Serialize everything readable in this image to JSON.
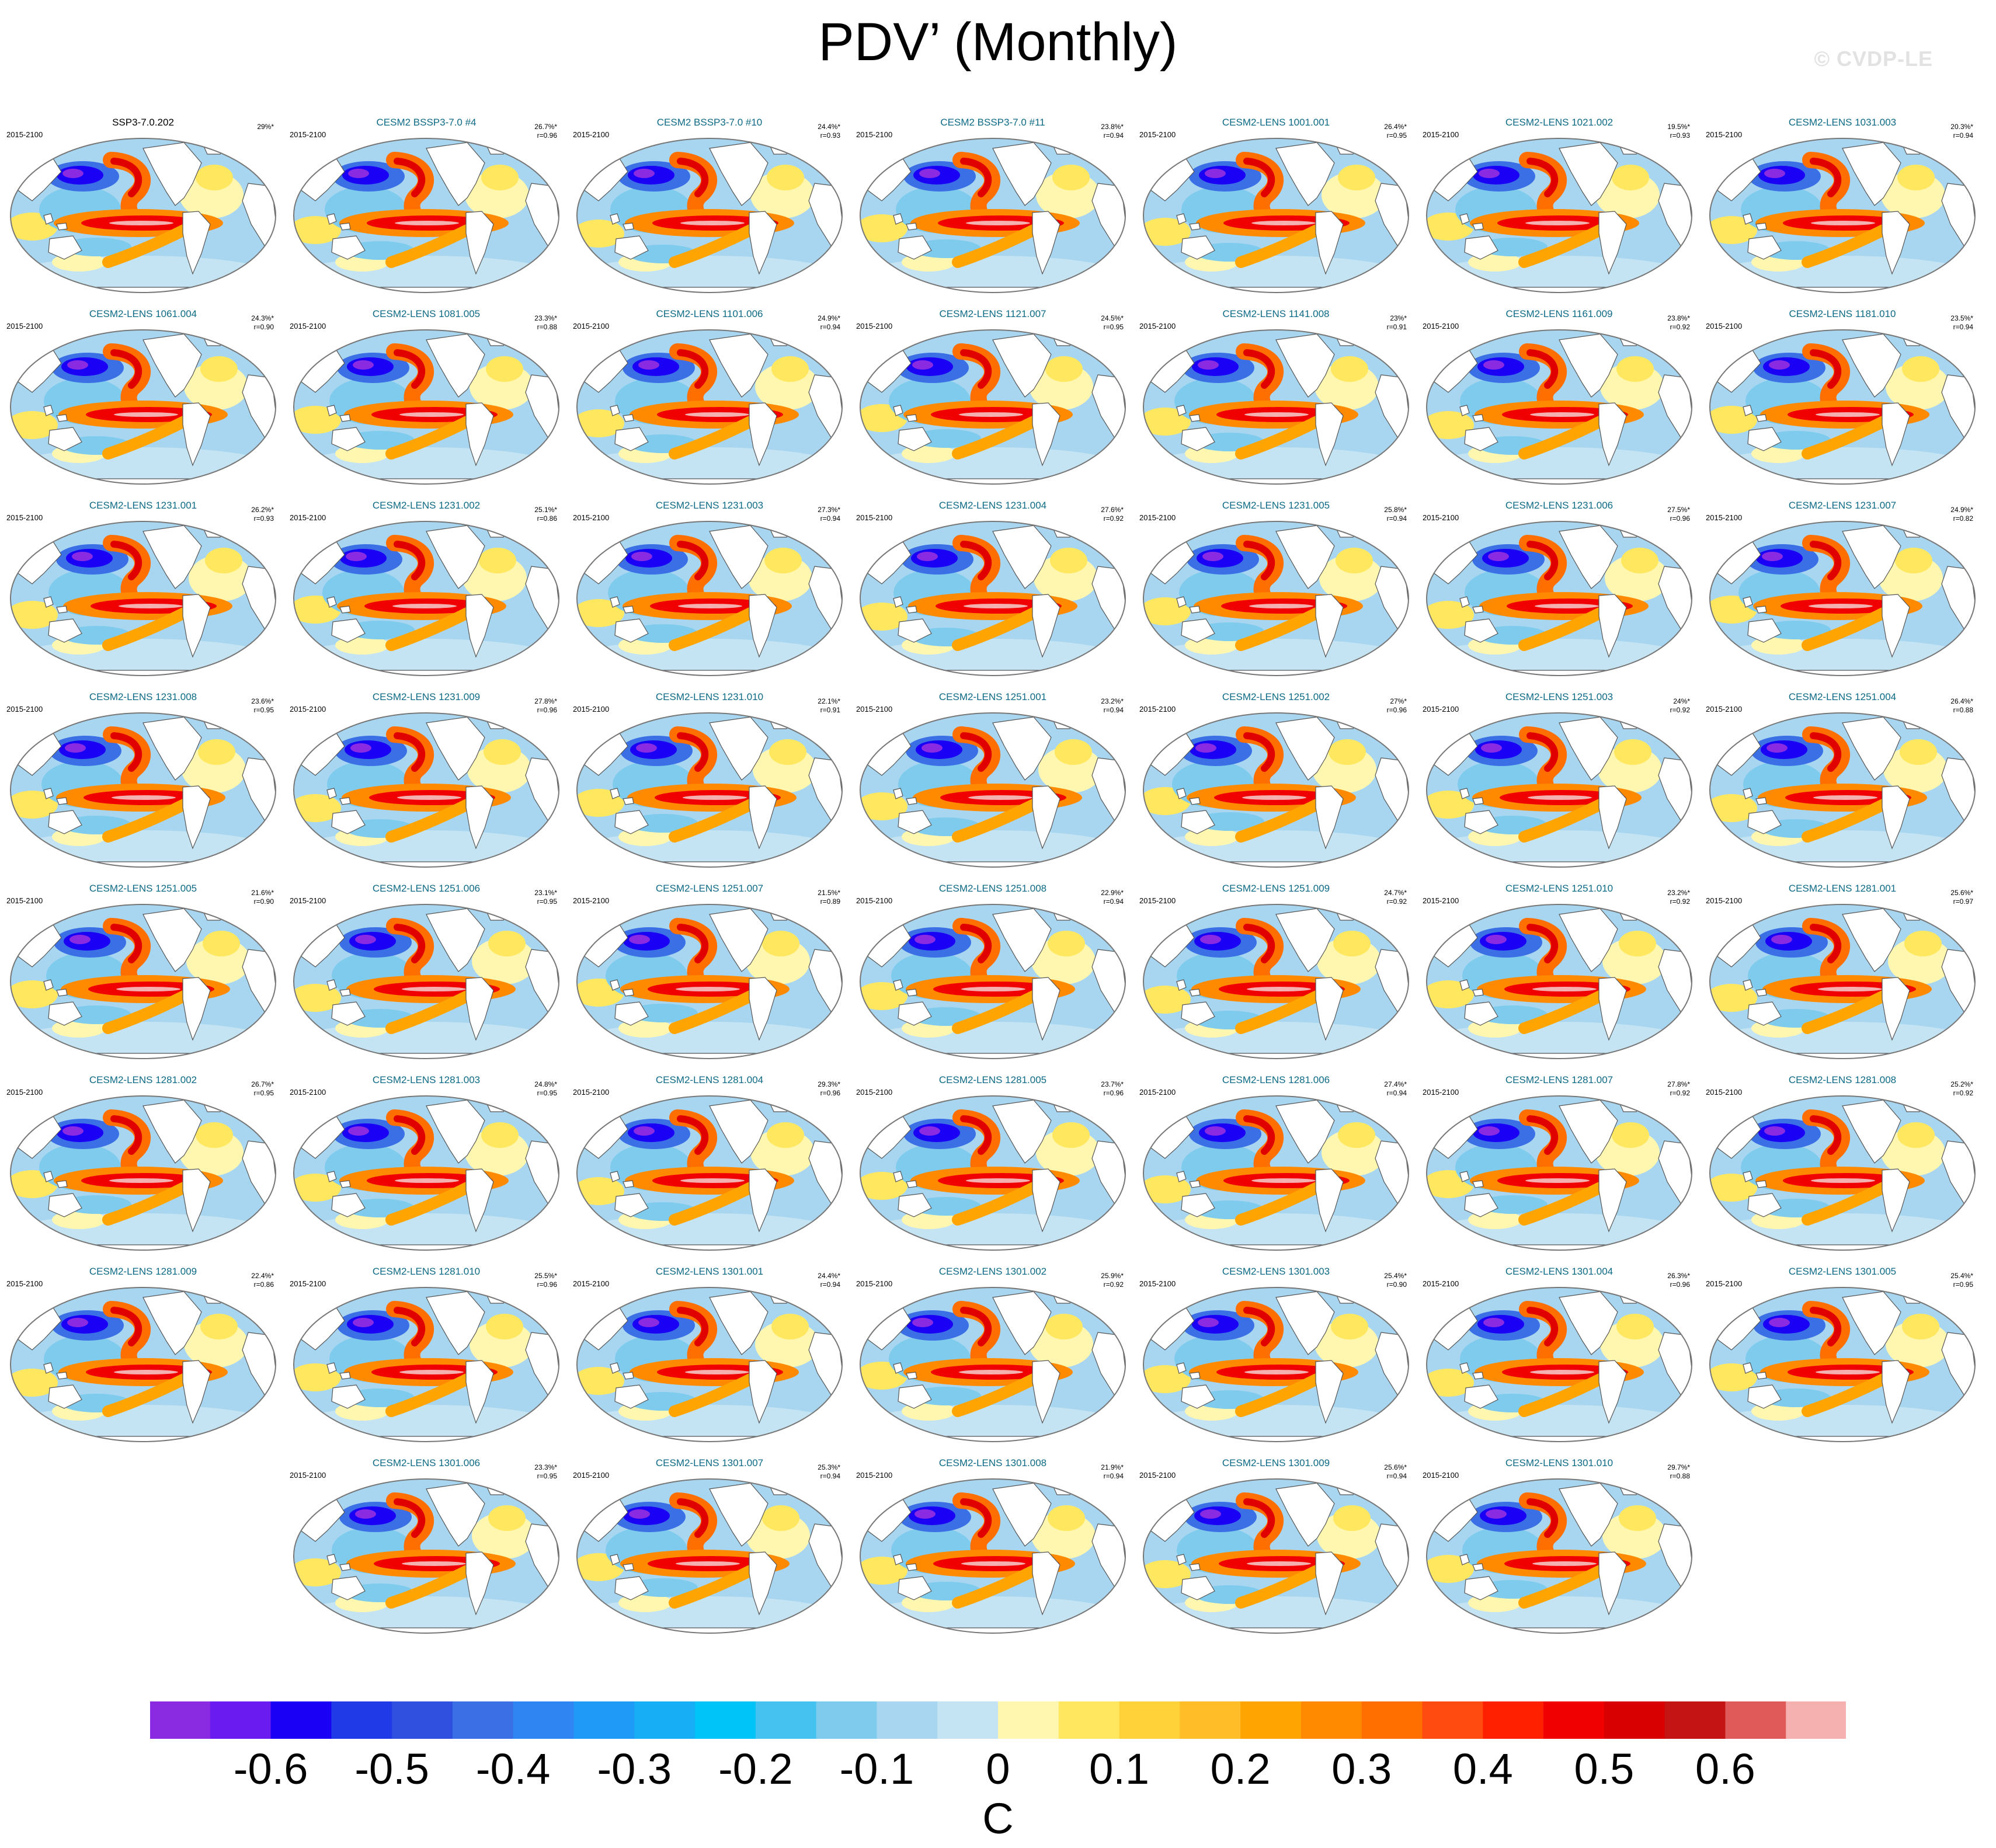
{
  "title": "PDV’ (Monthly)",
  "watermark": "© CVDP-LE",
  "period_label": "2015-2100",
  "panels": [
    {
      "title": "SSP3-7.0.202",
      "pct": "29%*",
      "r": ""
    },
    {
      "title": "CESM2 BSSP3-7.0 #4",
      "pct": "26.7%*",
      "r": "r=0.96"
    },
    {
      "title": "CESM2 BSSP3-7.0 #10",
      "pct": "24.4%*",
      "r": "r=0.93"
    },
    {
      "title": "CESM2 BSSP3-7.0 #11",
      "pct": "23.8%*",
      "r": "r=0.94"
    },
    {
      "title": "CESM2-LENS 1001.001",
      "pct": "26.4%*",
      "r": "r=0.95"
    },
    {
      "title": "CESM2-LENS 1021.002",
      "pct": "19.5%*",
      "r": "r=0.93"
    },
    {
      "title": "CESM2-LENS 1031.003",
      "pct": "20.3%*",
      "r": "r=0.94"
    },
    {
      "title": "CESM2-LENS 1061.004",
      "pct": "24.3%*",
      "r": "r=0.90"
    },
    {
      "title": "CESM2-LENS 1081.005",
      "pct": "23.3%*",
      "r": "r=0.88"
    },
    {
      "title": "CESM2-LENS 1101.006",
      "pct": "24.9%*",
      "r": "r=0.94"
    },
    {
      "title": "CESM2-LENS 1121.007",
      "pct": "24.5%*",
      "r": "r=0.95"
    },
    {
      "title": "CESM2-LENS 1141.008",
      "pct": "23%*",
      "r": "r=0.91"
    },
    {
      "title": "CESM2-LENS 1161.009",
      "pct": "23.8%*",
      "r": "r=0.92"
    },
    {
      "title": "CESM2-LENS 1181.010",
      "pct": "23.5%*",
      "r": "r=0.94"
    },
    {
      "title": "CESM2-LENS 1231.001",
      "pct": "26.2%*",
      "r": "r=0.93"
    },
    {
      "title": "CESM2-LENS 1231.002",
      "pct": "25.1%*",
      "r": "r=0.86"
    },
    {
      "title": "CESM2-LENS 1231.003",
      "pct": "27.3%*",
      "r": "r=0.94"
    },
    {
      "title": "CESM2-LENS 1231.004",
      "pct": "27.6%*",
      "r": "r=0.92"
    },
    {
      "title": "CESM2-LENS 1231.005",
      "pct": "25.8%*",
      "r": "r=0.94"
    },
    {
      "title": "CESM2-LENS 1231.006",
      "pct": "27.5%*",
      "r": "r=0.96"
    },
    {
      "title": "CESM2-LENS 1231.007",
      "pct": "24.9%*",
      "r": "r=0.82"
    },
    {
      "title": "CESM2-LENS 1231.008",
      "pct": "23.6%*",
      "r": "r=0.95"
    },
    {
      "title": "CESM2-LENS 1231.009",
      "pct": "27.8%*",
      "r": "r=0.96"
    },
    {
      "title": "CESM2-LENS 1231.010",
      "pct": "22.1%*",
      "r": "r=0.91"
    },
    {
      "title": "CESM2-LENS 1251.001",
      "pct": "23.2%*",
      "r": "r=0.94"
    },
    {
      "title": "CESM2-LENS 1251.002",
      "pct": "27%*",
      "r": "r=0.96"
    },
    {
      "title": "CESM2-LENS 1251.003",
      "pct": "24%*",
      "r": "r=0.92"
    },
    {
      "title": "CESM2-LENS 1251.004",
      "pct": "26.4%*",
      "r": "r=0.88"
    },
    {
      "title": "CESM2-LENS 1251.005",
      "pct": "21.6%*",
      "r": "r=0.90"
    },
    {
      "title": "CESM2-LENS 1251.006",
      "pct": "23.1%*",
      "r": "r=0.95"
    },
    {
      "title": "CESM2-LENS 1251.007",
      "pct": "21.5%*",
      "r": "r=0.89"
    },
    {
      "title": "CESM2-LENS 1251.008",
      "pct": "22.9%*",
      "r": "r=0.94"
    },
    {
      "title": "CESM2-LENS 1251.009",
      "pct": "24.7%*",
      "r": "r=0.92"
    },
    {
      "title": "CESM2-LENS 1251.010",
      "pct": "23.2%*",
      "r": "r=0.92"
    },
    {
      "title": "CESM2-LENS 1281.001",
      "pct": "25.6%*",
      "r": "r=0.97"
    },
    {
      "title": "CESM2-LENS 1281.002",
      "pct": "26.7%*",
      "r": "r=0.95"
    },
    {
      "title": "CESM2-LENS 1281.003",
      "pct": "24.8%*",
      "r": "r=0.95"
    },
    {
      "title": "CESM2-LENS 1281.004",
      "pct": "29.3%*",
      "r": "r=0.96"
    },
    {
      "title": "CESM2-LENS 1281.005",
      "pct": "23.7%*",
      "r": "r=0.96"
    },
    {
      "title": "CESM2-LENS 1281.006",
      "pct": "27.4%*",
      "r": "r=0.94"
    },
    {
      "title": "CESM2-LENS 1281.007",
      "pct": "27.8%*",
      "r": "r=0.92"
    },
    {
      "title": "CESM2-LENS 1281.008",
      "pct": "25.2%*",
      "r": "r=0.92"
    },
    {
      "title": "CESM2-LENS 1281.009",
      "pct": "22.4%*",
      "r": "r=0.86"
    },
    {
      "title": "CESM2-LENS 1281.010",
      "pct": "25.5%*",
      "r": "r=0.96"
    },
    {
      "title": "CESM2-LENS 1301.001",
      "pct": "24.4%*",
      "r": "r=0.94"
    },
    {
      "title": "CESM2-LENS 1301.002",
      "pct": "25.9%*",
      "r": "r=0.92"
    },
    {
      "title": "CESM2-LENS 1301.003",
      "pct": "25.4%*",
      "r": "r=0.90"
    },
    {
      "title": "CESM2-LENS 1301.004",
      "pct": "26.3%*",
      "r": "r=0.96"
    },
    {
      "title": "CESM2-LENS 1301.005",
      "pct": "25.4%*",
      "r": "r=0.95"
    },
    {
      "title": "CESM2-LENS 1301.006",
      "pct": "23.3%*",
      "r": "r=0.95"
    },
    {
      "title": "CESM2-LENS 1301.007",
      "pct": "25.3%*",
      "r": "r=0.94"
    },
    {
      "title": "CESM2-LENS 1301.008",
      "pct": "21.9%*",
      "r": "r=0.94"
    },
    {
      "title": "CESM2-LENS 1301.009",
      "pct": "25.6%*",
      "r": "r=0.94"
    },
    {
      "title": "CESM2-LENS 1301.010",
      "pct": "29.7%*",
      "r": "r=0.88"
    }
  ],
  "colorbar": {
    "unit": "C",
    "colors": [
      "#8a2be2",
      "#6a1bf0",
      "#1a00f5",
      "#1f3ae6",
      "#3050e0",
      "#3a6fe6",
      "#2f85f2",
      "#1f9af7",
      "#18aef5",
      "#00c3f7",
      "#45c2f0",
      "#7fcbed",
      "#a8d6f0",
      "#c5e4f3",
      "#fff7b0",
      "#ffe860",
      "#ffd23a",
      "#ffbe28",
      "#ffa400",
      "#ff8a00",
      "#ff6f00",
      "#ff4a10",
      "#ff2000",
      "#f00000",
      "#d80000",
      "#c41414",
      "#e05a5a",
      "#f5b0b0"
    ],
    "tick_labels": [
      "-0.6",
      "-0.5",
      "-0.4",
      "-0.3",
      "-0.2",
      "-0.1",
      "0",
      "0.1",
      "0.2",
      "0.3",
      "0.4",
      "0.5",
      "0.6"
    ]
  }
}
